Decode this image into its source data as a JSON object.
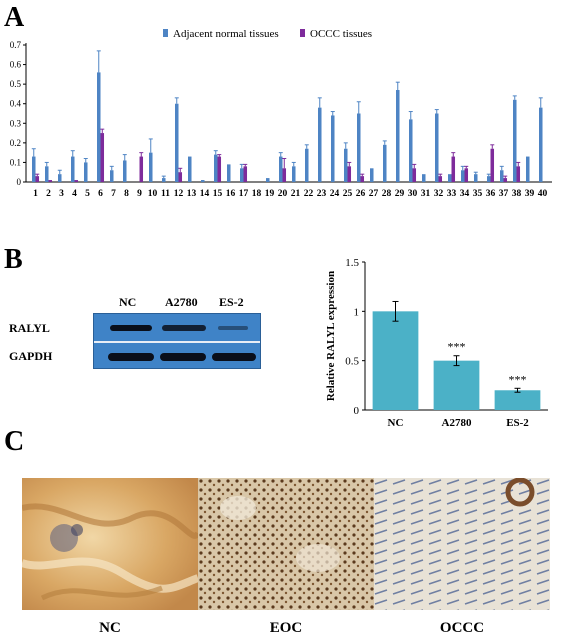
{
  "panels": {
    "a": "A",
    "b": "B",
    "c": "C"
  },
  "chart_data": [
    {
      "type": "bar",
      "legend": {
        "placement": "top",
        "entries": [
          "Adjacent normal tissues",
          "OCCC tissues"
        ]
      },
      "colors": {
        "normal": "#4e84c4",
        "occc": "#7e2b9b"
      },
      "categories": [
        "1",
        "2",
        "3",
        "4",
        "5",
        "6",
        "7",
        "8",
        "9",
        "10",
        "11",
        "12",
        "13",
        "14",
        "15",
        "16",
        "17",
        "18",
        "19",
        "20",
        "21",
        "22",
        "23",
        "24",
        "25",
        "26",
        "27",
        "28",
        "29",
        "30",
        "31",
        "32",
        "33",
        "34",
        "35",
        "36",
        "37",
        "38",
        "39",
        "40"
      ],
      "ylim": [
        0,
        0.7
      ],
      "yticks": [
        "0",
        "0.1",
        "0.2",
        "0.3",
        "0.4",
        "0.5",
        "0.6",
        "0.7"
      ],
      "series": [
        {
          "name": "Adjacent normal tissues",
          "values": [
            0.13,
            0.08,
            0.04,
            0.13,
            0.1,
            0.56,
            0.06,
            0.11,
            0.0,
            0.15,
            0.02,
            0.4,
            0.13,
            0.01,
            0.14,
            0.09,
            0.07,
            0.0,
            0.02,
            0.13,
            0.08,
            0.17,
            0.38,
            0.34,
            0.17,
            0.35,
            0.07,
            0.19,
            0.47,
            0.32,
            0.04,
            0.35,
            0.04,
            0.06,
            0.04,
            0.03,
            0.06,
            0.42,
            0.13,
            0.38
          ],
          "errors": [
            0.04,
            0.02,
            0.02,
            0.03,
            0.02,
            0.11,
            0.02,
            0.03,
            0.0,
            0.07,
            0.01,
            0.03,
            0.0,
            0.0,
            0.02,
            0.0,
            0.02,
            0.0,
            0.0,
            0.02,
            0.02,
            0.02,
            0.05,
            0.02,
            0.03,
            0.06,
            0.0,
            0.02,
            0.04,
            0.04,
            0.0,
            0.02,
            0.0,
            0.02,
            0.01,
            0.01,
            0.02,
            0.02,
            0.0,
            0.05
          ]
        },
        {
          "name": "OCCC tissues",
          "values": [
            0.03,
            0.01,
            0.0,
            0.01,
            0.0,
            0.25,
            0.0,
            0.0,
            0.13,
            0.0,
            0.0,
            0.05,
            0.0,
            0.0,
            0.13,
            0.0,
            0.08,
            0.0,
            0.0,
            0.07,
            0.0,
            0.0,
            0.0,
            0.0,
            0.08,
            0.03,
            0.0,
            0.0,
            0.0,
            0.07,
            0.0,
            0.03,
            0.13,
            0.07,
            0.0,
            0.17,
            0.02,
            0.08,
            0.0,
            0.0
          ],
          "errors": [
            0.01,
            0.0,
            0.0,
            0.0,
            0.0,
            0.02,
            0.0,
            0.0,
            0.02,
            0.0,
            0.0,
            0.02,
            0.0,
            0.0,
            0.01,
            0.0,
            0.01,
            0.0,
            0.0,
            0.05,
            0.0,
            0.0,
            0.0,
            0.0,
            0.02,
            0.01,
            0.0,
            0.0,
            0.0,
            0.02,
            0.0,
            0.01,
            0.02,
            0.01,
            0.0,
            0.02,
            0.01,
            0.02,
            0.0,
            0.0
          ]
        }
      ]
    },
    {
      "type": "bar",
      "ylabel": "Relative RALYL expression",
      "categories": [
        "NC",
        "A2780",
        "ES-2"
      ],
      "values": [
        1.0,
        0.5,
        0.2
      ],
      "errors": [
        0.1,
        0.05,
        0.02
      ],
      "annotations": [
        "",
        "***",
        "***"
      ],
      "ylim": [
        0,
        1.5
      ],
      "yticks": [
        "0",
        "0.5",
        "1",
        "1.5"
      ],
      "color": "#4bb1c7"
    }
  ],
  "western_blot": {
    "lanes": [
      "NC",
      "A2780",
      "ES-2"
    ],
    "rows": [
      "RALYL",
      "GAPDH"
    ]
  },
  "ihc": {
    "labels": [
      "NC",
      "EOC",
      "OCCC"
    ]
  }
}
